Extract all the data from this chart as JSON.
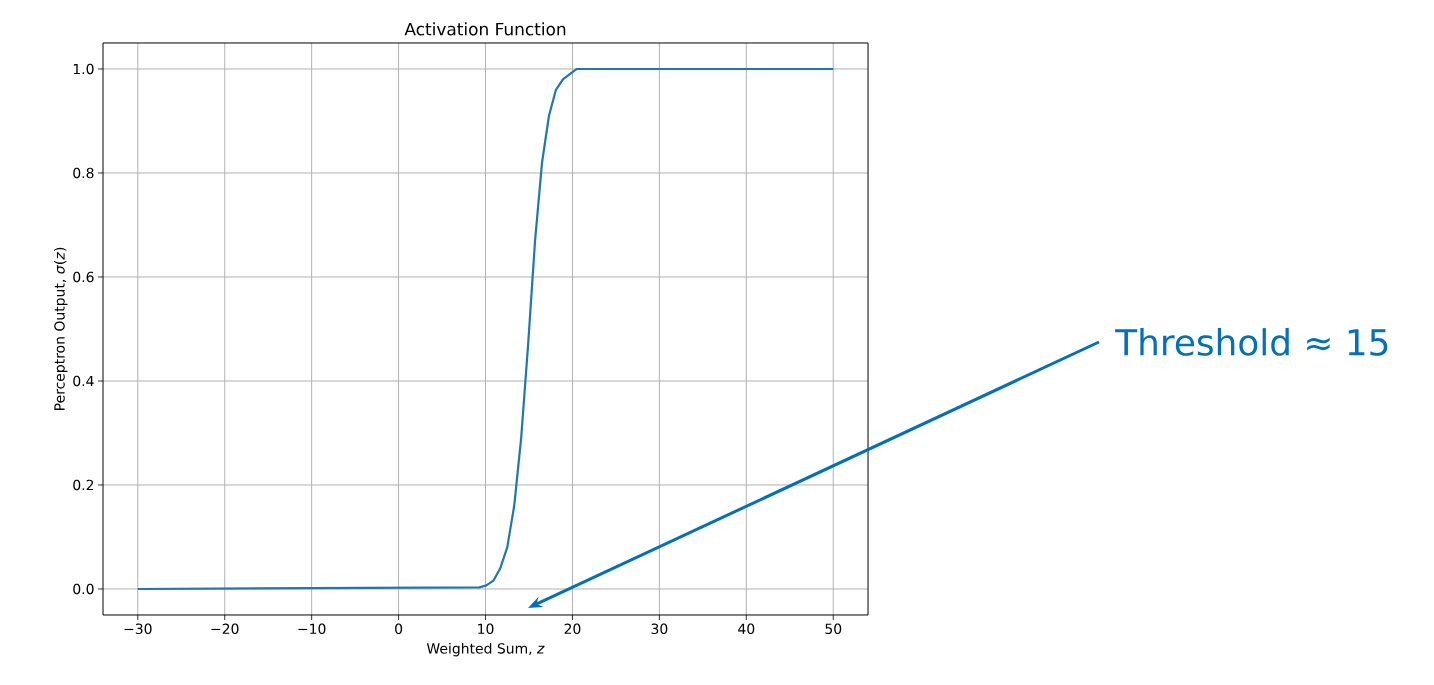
{
  "chart_data": {
    "type": "line",
    "title": "Activation Function",
    "xlabel": "Weighted Sum, *z*",
    "ylabel": "Perceptron Output, *σ*(*z*)",
    "x": [
      -30,
      9.3,
      10.1,
      10.9,
      11.7,
      12.5,
      13.3,
      14.1,
      14.9,
      15.7,
      16.5,
      17.3,
      18.1,
      18.9,
      19.7,
      20.5,
      22,
      50
    ],
    "series": [
      {
        "color": "#1f77b4",
        "values": [
          0,
          0.003,
          0.007,
          0.016,
          0.04,
          0.08,
          0.16,
          0.29,
          0.47,
          0.67,
          0.82,
          0.91,
          0.96,
          0.98,
          0.99,
          1.0,
          1.0,
          1.0
        ]
      }
    ],
    "xlim": [
      -34,
      54
    ],
    "ylim": [
      -0.05,
      1.05
    ],
    "xticks": [
      {
        "value": -30,
        "label": "−30"
      },
      {
        "value": -20,
        "label": "−20"
      },
      {
        "value": -10,
        "label": "−10"
      },
      {
        "value": 0,
        "label": "0"
      },
      {
        "value": 10,
        "label": "10"
      },
      {
        "value": 20,
        "label": "20"
      },
      {
        "value": 30,
        "label": "30"
      },
      {
        "value": 40,
        "label": "40"
      },
      {
        "value": 50,
        "label": "50"
      }
    ],
    "yticks": [
      {
        "value": 0,
        "label": "0.0"
      },
      {
        "value": 0.2,
        "label": "0.2"
      },
      {
        "value": 0.4,
        "label": "0.4"
      },
      {
        "value": 0.6,
        "label": "0.6"
      },
      {
        "value": 0.8,
        "label": "0.8"
      },
      {
        "value": 1.0,
        "label": "1.0"
      }
    ],
    "grid": true,
    "marker": "none",
    "line_style": "solid",
    "annotations": [
      "Threshold ≈ 15"
    ]
  }
}
